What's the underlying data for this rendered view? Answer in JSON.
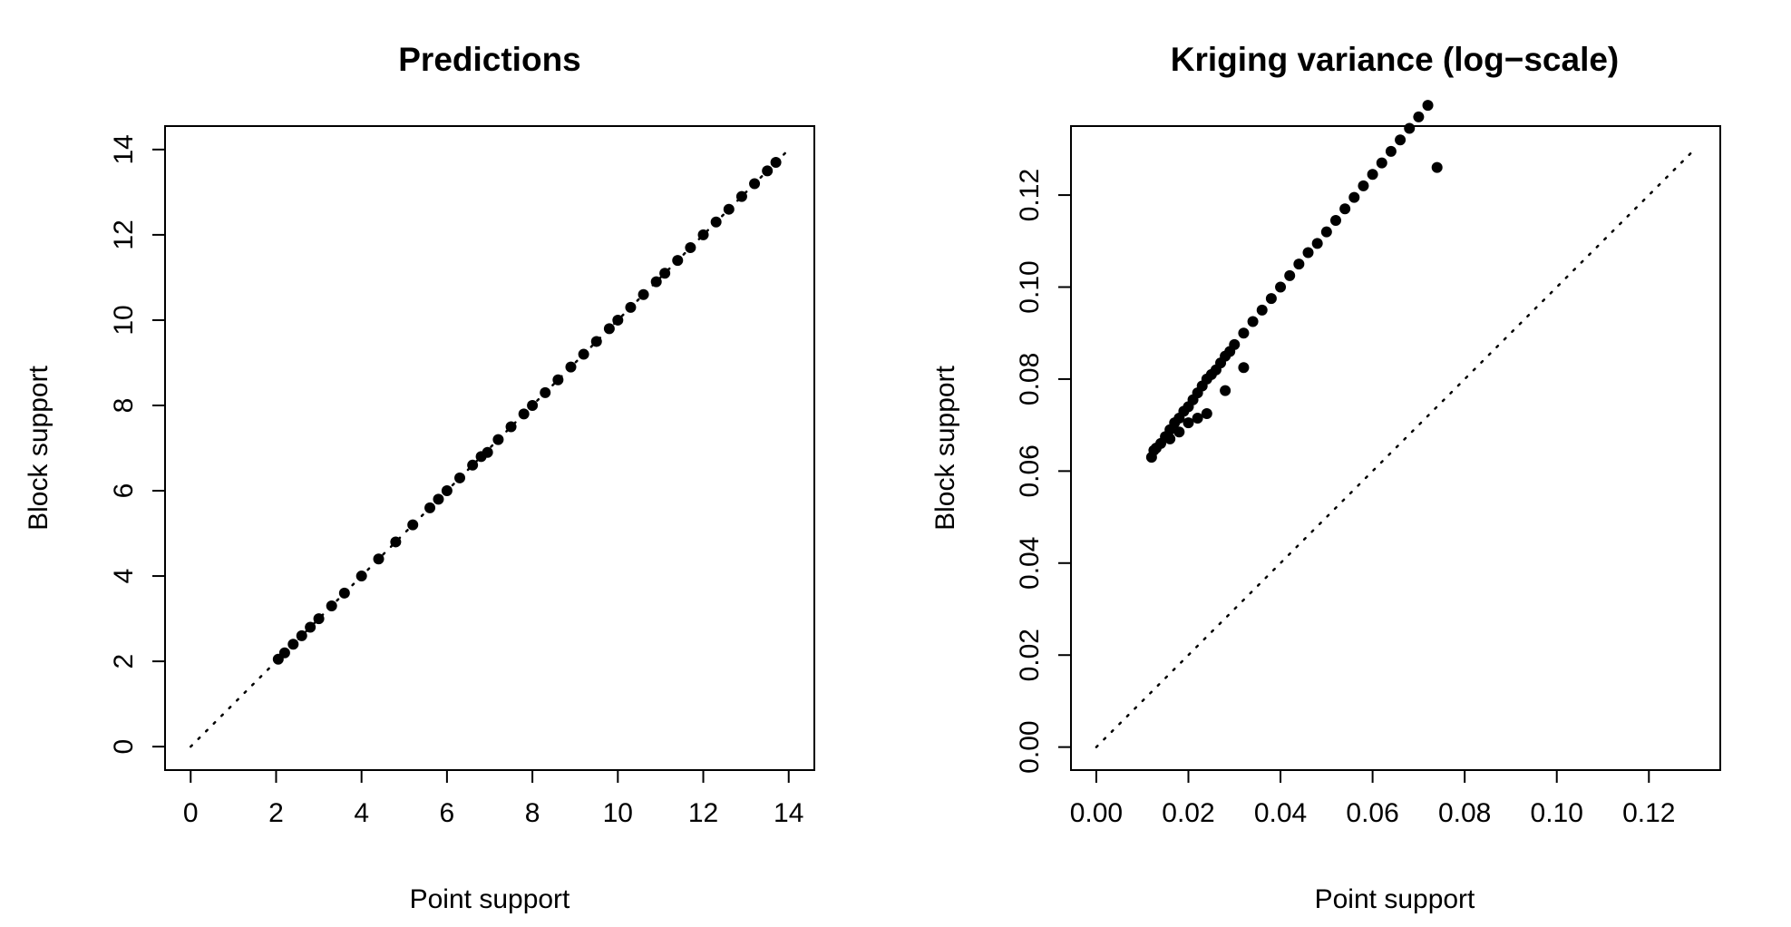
{
  "figure": {
    "background": "#ffffff",
    "point_color": "#000000"
  },
  "chart_data": [
    {
      "type": "scatter",
      "title": "Predictions",
      "xlabel": "Point support",
      "ylabel": "Block support",
      "xlim": [
        -0.6,
        14.6
      ],
      "ylim": [
        -0.55,
        14.55
      ],
      "xticks": [
        0,
        2,
        4,
        6,
        8,
        10,
        12,
        14
      ],
      "yticks": [
        0,
        2,
        4,
        6,
        8,
        10,
        12,
        14
      ],
      "xtick_labels": [
        "0",
        "2",
        "4",
        "6",
        "8",
        "10",
        "12",
        "14"
      ],
      "ytick_labels": [
        "0",
        "2",
        "4",
        "6",
        "8",
        "10",
        "12",
        "14"
      ],
      "grid": false,
      "reference_line": {
        "style": "dotted",
        "from": [
          0,
          0
        ],
        "to": [
          14,
          14
        ]
      },
      "series": [
        {
          "x": [
            2.05,
            2.2,
            2.4,
            2.6,
            2.8,
            3.0,
            3.3,
            3.6,
            4.0,
            4.4,
            4.8,
            5.2,
            5.6,
            5.8,
            6.0,
            6.3,
            6.6,
            6.8,
            6.95,
            7.2,
            7.5,
            7.8,
            8.0,
            8.3,
            8.6,
            8.9,
            9.2,
            9.5,
            9.8,
            10.0,
            10.3,
            10.6,
            10.9,
            11.1,
            11.4,
            11.7,
            12.0,
            12.3,
            12.6,
            12.9,
            13.2,
            13.5,
            13.7
          ],
          "y": [
            2.05,
            2.2,
            2.4,
            2.6,
            2.8,
            3.0,
            3.3,
            3.6,
            4.0,
            4.4,
            4.8,
            5.2,
            5.6,
            5.8,
            6.0,
            6.3,
            6.6,
            6.8,
            6.9,
            7.2,
            7.5,
            7.8,
            8.0,
            8.3,
            8.6,
            8.9,
            9.2,
            9.5,
            9.8,
            10.0,
            10.3,
            10.6,
            10.9,
            11.1,
            11.4,
            11.7,
            12.0,
            12.3,
            12.6,
            12.9,
            13.2,
            13.5,
            13.7
          ]
        }
      ]
    },
    {
      "type": "scatter",
      "title": "Kriging variance (log−scale)",
      "xlabel": "Point support",
      "ylabel": "Block support",
      "xlim": [
        -0.0055,
        0.1355
      ],
      "ylim": [
        -0.005,
        0.135
      ],
      "xticks": [
        0.0,
        0.02,
        0.04,
        0.06,
        0.08,
        0.1,
        0.12
      ],
      "yticks": [
        0.0,
        0.02,
        0.04,
        0.06,
        0.08,
        0.1,
        0.12
      ],
      "xtick_labels": [
        "0.00",
        "0.02",
        "0.04",
        "0.06",
        "0.08",
        "0.10",
        "0.12"
      ],
      "ytick_labels": [
        "0.00",
        "0.02",
        "0.04",
        "0.06",
        "0.08",
        "0.10",
        "0.12"
      ],
      "grid": false,
      "reference_line": {
        "style": "dotted",
        "from": [
          0,
          0
        ],
        "to": [
          0.13,
          0.13
        ]
      },
      "series": [
        {
          "x": [
            0.012,
            0.0125,
            0.013,
            0.014,
            0.015,
            0.016,
            0.017,
            0.018,
            0.019,
            0.02,
            0.021,
            0.022,
            0.023,
            0.024,
            0.025,
            0.026,
            0.027,
            0.028,
            0.029,
            0.03,
            0.032,
            0.034,
            0.036,
            0.038,
            0.04,
            0.042,
            0.044,
            0.046,
            0.048,
            0.05,
            0.052,
            0.054,
            0.056,
            0.058,
            0.06,
            0.062,
            0.064,
            0.066,
            0.068,
            0.07,
            0.072,
            0.074,
            0.016,
            0.018,
            0.02,
            0.022,
            0.024,
            0.028,
            0.032
          ],
          "y": [
            0.063,
            0.0645,
            0.065,
            0.066,
            0.0675,
            0.069,
            0.0705,
            0.0715,
            0.073,
            0.074,
            0.0755,
            0.077,
            0.0785,
            0.08,
            0.081,
            0.082,
            0.0835,
            0.085,
            0.086,
            0.0875,
            0.09,
            0.0925,
            0.095,
            0.0975,
            0.1,
            0.1025,
            0.105,
            0.1075,
            0.1095,
            0.112,
            0.1145,
            0.117,
            0.1195,
            0.122,
            0.1245,
            0.127,
            0.1295,
            0.132,
            0.1345,
            0.137,
            0.1395,
            0.126,
            0.067,
            0.0685,
            0.0705,
            0.0715,
            0.0725,
            0.0775,
            0.0825
          ]
        }
      ]
    }
  ]
}
